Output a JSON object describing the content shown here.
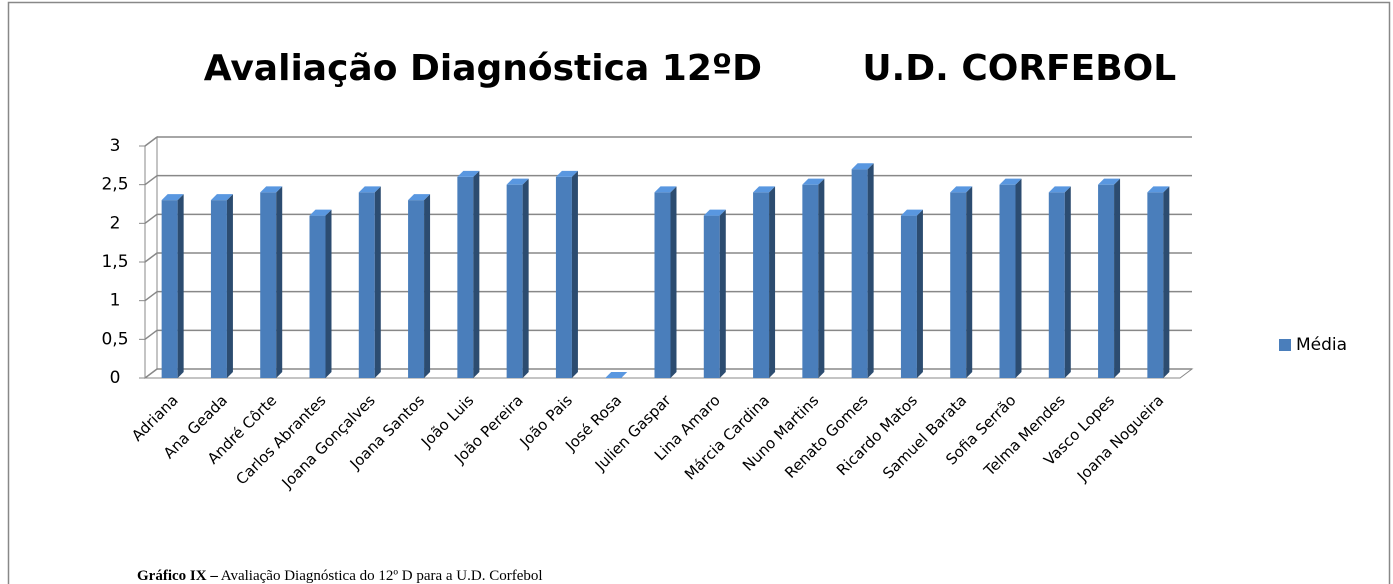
{
  "chart_data": {
    "type": "bar3d",
    "title": "Avaliação Diagnóstica 12ºD        U.D. CORFEBOL",
    "caption_label": "Gráfico IX –",
    "caption": "Avaliação Diagnóstica do 12º D para a U.D. Corfebol",
    "categories": [
      "Adriana",
      "Ana Geada",
      "André Côrte",
      "Carlos Abrantes",
      "Joana Gonçalves",
      "Joana Santos",
      "João Luis",
      "João Pereira",
      "João Pais",
      "José Rosa",
      "Julien Gaspar",
      "Lina Amaro",
      "Márcia Cardina",
      "Nuno Martins",
      "Renato Gomes",
      "Ricardo Matos",
      "Samuel Barata",
      "Sofia Serrão",
      "Telma Mendes",
      "Vasco Lopes",
      "Joana Nogueira"
    ],
    "series": [
      {
        "name": "Média",
        "color": "#4a7ebb",
        "values": [
          2.3,
          2.3,
          2.4,
          2.1,
          2.4,
          2.3,
          2.6,
          2.5,
          2.6,
          0,
          2.4,
          2.1,
          2.4,
          2.5,
          2.7,
          2.1,
          2.4,
          2.5,
          2.4,
          2.5,
          2.4
        ]
      }
    ],
    "ylim": [
      0,
      3
    ],
    "yticks": [
      0,
      {
        "value": 0.5,
        "label": "0,5"
      },
      1,
      {
        "value": 1.5,
        "label": "1,5"
      },
      2,
      {
        "value": 2.5,
        "label": "2,5"
      },
      3
    ],
    "grid": true,
    "legend": "right"
  }
}
